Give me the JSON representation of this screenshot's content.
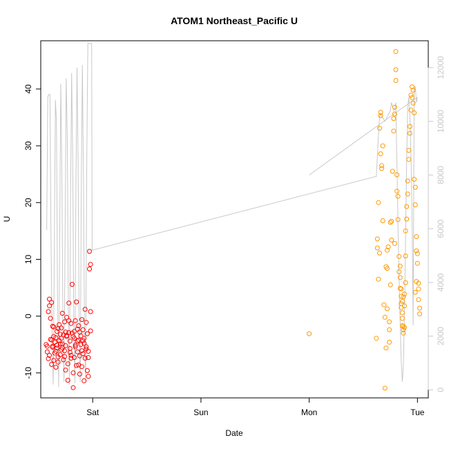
{
  "chart_data": {
    "type": "scatter",
    "title": "ATOM1 Northeast_Pacific U",
    "xlabel": "Date",
    "ylabel": "U",
    "x_ticks": [
      {
        "value": 2.0,
        "label": "Sat"
      },
      {
        "value": 3.0,
        "label": "Sun"
      },
      {
        "value": 4.0,
        "label": "Mon"
      },
      {
        "value": 5.0,
        "label": "Tue"
      }
    ],
    "xlim": [
      1.52,
      5.1
    ],
    "ylim": [
      -14.4,
      48.5
    ],
    "y_ticks": [
      -10,
      0,
      10,
      20,
      30,
      40
    ],
    "y2lim": [
      -300,
      13000
    ],
    "y2_ticks": [
      0,
      2000,
      4000,
      6000,
      8000,
      10000,
      12000
    ],
    "colors": {
      "group1": "#ff0000",
      "group2": "#ff9900",
      "line": "#c8c8c8"
    },
    "series": [
      {
        "color": "#ff0000",
        "points": [
          [
            1.57,
            -5
          ],
          [
            1.58,
            -6.3
          ],
          [
            1.59,
            -7.5
          ],
          [
            1.6,
            1.8
          ],
          [
            1.6,
            3
          ],
          [
            1.61,
            -0.4
          ],
          [
            1.61,
            -4.1
          ],
          [
            1.62,
            -8.5
          ],
          [
            1.62,
            2.4
          ],
          [
            1.63,
            -1.8
          ],
          [
            1.63,
            -5.5
          ],
          [
            1.64,
            -7.8
          ],
          [
            1.64,
            -1.9
          ],
          [
            1.65,
            -4.6
          ],
          [
            1.65,
            -6.5
          ],
          [
            1.66,
            -3.8
          ],
          [
            1.66,
            -9
          ],
          [
            1.67,
            -5.1
          ],
          [
            1.67,
            -2.7
          ],
          [
            1.68,
            -7.2
          ],
          [
            1.68,
            -8.1
          ],
          [
            1.69,
            -4.3
          ],
          [
            1.69,
            -1.5
          ],
          [
            1.7,
            -6.8
          ],
          [
            1.7,
            -3.2
          ],
          [
            1.71,
            -5.9
          ],
          [
            1.71,
            -2.1
          ],
          [
            1.72,
            0.5
          ],
          [
            1.72,
            -4.9
          ],
          [
            1.73,
            -7.7
          ],
          [
            1.73,
            -3.3
          ],
          [
            1.74,
            -6.1
          ],
          [
            1.74,
            -1
          ],
          [
            1.75,
            -9.5
          ],
          [
            1.75,
            -5.2
          ],
          [
            1.76,
            -0.2
          ],
          [
            1.76,
            -3.6
          ],
          [
            1.77,
            -11.3
          ],
          [
            1.77,
            -8.4
          ],
          [
            1.78,
            -2.9
          ],
          [
            1.78,
            2.3
          ],
          [
            1.79,
            -5.7
          ],
          [
            1.79,
            -4.4
          ],
          [
            1.8,
            -6.9
          ],
          [
            1.8,
            -1.3
          ],
          [
            1.81,
            5.6
          ],
          [
            1.81,
            -3
          ],
          [
            1.82,
            -10
          ],
          [
            1.82,
            -12.6
          ],
          [
            1.83,
            -7.3
          ],
          [
            1.83,
            -3.9
          ],
          [
            1.84,
            -0.8
          ],
          [
            1.84,
            -5.4
          ],
          [
            1.85,
            -8.7
          ],
          [
            1.85,
            2.5
          ],
          [
            1.86,
            -2.3
          ],
          [
            1.86,
            -6.3
          ],
          [
            1.87,
            -4.2
          ],
          [
            1.87,
            -1.7
          ],
          [
            1.88,
            -7
          ],
          [
            1.88,
            -10.2
          ],
          [
            1.89,
            -5
          ],
          [
            1.89,
            -3.5
          ],
          [
            1.9,
            -0.6
          ],
          [
            1.9,
            -8.9
          ],
          [
            1.91,
            -6.6
          ],
          [
            1.91,
            -2.4
          ],
          [
            1.92,
            -11.4
          ],
          [
            1.92,
            -4.8
          ],
          [
            1.93,
            -7.4
          ],
          [
            1.93,
            1.2
          ],
          [
            1.94,
            -1.1
          ],
          [
            1.94,
            -5.8
          ],
          [
            1.95,
            -9.6
          ],
          [
            1.95,
            -3.1
          ],
          [
            1.96,
            -6.2
          ],
          [
            1.96,
            -10.6
          ],
          [
            1.97,
            8.3
          ],
          [
            1.97,
            11.4
          ],
          [
            1.98,
            9.1
          ],
          [
            1.98,
            0.8
          ],
          [
            1.98,
            -2.6
          ],
          [
            1.58,
            -5.3
          ],
          [
            1.59,
            0.8
          ],
          [
            1.62,
            -4.2
          ],
          [
            1.64,
            -3.6
          ],
          [
            1.66,
            -6.2
          ],
          [
            1.68,
            -2.2
          ],
          [
            1.7,
            -4.9
          ],
          [
            1.72,
            -5.6
          ],
          [
            1.74,
            -7.1
          ],
          [
            1.76,
            -3.4
          ],
          [
            1.78,
            -0.8
          ],
          [
            1.8,
            -7.4
          ],
          [
            1.82,
            -3.6
          ],
          [
            1.84,
            -5.1
          ],
          [
            1.86,
            -4.4
          ],
          [
            1.88,
            -2.8
          ],
          [
            1.9,
            -6.1
          ],
          [
            1.92,
            -3.9
          ],
          [
            1.94,
            -5.4
          ],
          [
            1.96,
            -7.3
          ],
          [
            1.6,
            -6.9
          ],
          [
            1.63,
            -5.3
          ],
          [
            1.67,
            -5.6
          ],
          [
            1.71,
            -3.9
          ],
          [
            1.75,
            -2.8
          ],
          [
            1.79,
            -6.4
          ],
          [
            1.83,
            -2.7
          ],
          [
            1.87,
            -8.6
          ],
          [
            1.91,
            -4.3
          ]
        ]
      },
      {
        "color": "#ff9900",
        "points": [
          [
            4.0,
            -3.1
          ],
          [
            4.62,
            -3.9
          ],
          [
            4.63,
            13.6
          ],
          [
            4.63,
            12
          ],
          [
            4.64,
            6.5
          ],
          [
            4.64,
            20
          ],
          [
            4.65,
            11.1
          ],
          [
            4.65,
            33.1
          ],
          [
            4.66,
            35.9
          ],
          [
            4.66,
            28.6
          ],
          [
            4.67,
            26.5
          ],
          [
            4.67,
            26
          ],
          [
            4.68,
            30
          ],
          [
            4.68,
            16.8
          ],
          [
            4.69,
            2
          ],
          [
            4.7,
            -12.7
          ],
          [
            4.7,
            -0.2
          ],
          [
            4.71,
            -5.6
          ],
          [
            4.71,
            8.7
          ],
          [
            4.72,
            11.6
          ],
          [
            4.72,
            8.4
          ],
          [
            4.73,
            12.2
          ],
          [
            4.74,
            -4.6
          ],
          [
            4.74,
            -2.4
          ],
          [
            4.75,
            5.5
          ],
          [
            4.76,
            13.4
          ],
          [
            4.76,
            16.7
          ],
          [
            4.77,
            25.5
          ],
          [
            4.78,
            32.6
          ],
          [
            4.78,
            34.8
          ],
          [
            4.79,
            35.6
          ],
          [
            4.79,
            36.8
          ],
          [
            4.8,
            43.4
          ],
          [
            4.8,
            46.6
          ],
          [
            4.8,
            41.5
          ],
          [
            4.81,
            24.9
          ],
          [
            4.81,
            22
          ],
          [
            4.82,
            21.1
          ],
          [
            4.82,
            17
          ],
          [
            4.83,
            10.5
          ],
          [
            4.83,
            7.8
          ],
          [
            4.84,
            6.8
          ],
          [
            4.84,
            4.9
          ],
          [
            4.85,
            3.5
          ],
          [
            4.85,
            2.2
          ],
          [
            4.85,
            1.5
          ],
          [
            4.86,
            0.6
          ],
          [
            4.86,
            -0.4
          ],
          [
            4.86,
            -1.7
          ],
          [
            4.87,
            -2.4
          ],
          [
            4.87,
            -3
          ],
          [
            4.87,
            -1.8
          ],
          [
            4.88,
            -2
          ],
          [
            4.88,
            1.8
          ],
          [
            4.88,
            3.9
          ],
          [
            4.89,
            5.9
          ],
          [
            4.89,
            10.6
          ],
          [
            4.89,
            15
          ],
          [
            4.9,
            17.1
          ],
          [
            4.9,
            19.3
          ],
          [
            4.91,
            21.5
          ],
          [
            4.91,
            23.8
          ],
          [
            4.92,
            27.6
          ],
          [
            4.92,
            29.2
          ],
          [
            4.93,
            32.2
          ],
          [
            4.93,
            33.4
          ],
          [
            4.94,
            36.3
          ],
          [
            4.94,
            38.9
          ],
          [
            4.95,
            40.4
          ],
          [
            4.95,
            38.5
          ],
          [
            4.96,
            39.8
          ],
          [
            4.96,
            37.5
          ],
          [
            4.97,
            35.8
          ],
          [
            4.97,
            24.1
          ],
          [
            4.98,
            22.7
          ],
          [
            4.98,
            19.6
          ],
          [
            4.99,
            14
          ],
          [
            4.99,
            11.5
          ],
          [
            5.0,
            9.3
          ],
          [
            5.0,
            11
          ],
          [
            5.01,
            5.8
          ],
          [
            5.01,
            4.8
          ],
          [
            5.01,
            2.9
          ],
          [
            5.02,
            1.4
          ],
          [
            5.02,
            0.4
          ],
          [
            4.99,
            6.1
          ],
          [
            4.98,
            4.2
          ],
          [
            4.87,
            3.4
          ],
          [
            4.86,
            2.6
          ],
          [
            4.85,
            4.8
          ],
          [
            4.84,
            8.8
          ],
          [
            4.79,
            12.8
          ],
          [
            4.75,
            16.5
          ],
          [
            4.74,
            -1
          ],
          [
            4.72,
            1.3
          ],
          [
            4.66,
            35.3
          ]
        ]
      }
    ],
    "right_axis_line": [
      [
        1.575,
        5950
      ],
      [
        1.585,
        10900
      ],
      [
        1.595,
        11000
      ],
      [
        1.605,
        11000
      ],
      [
        1.615,
        5500
      ],
      [
        1.625,
        2000
      ],
      [
        1.635,
        200
      ],
      [
        1.645,
        5000
      ],
      [
        1.655,
        10800
      ],
      [
        1.665,
        10000
      ],
      [
        1.675,
        3500
      ],
      [
        1.685,
        100
      ],
      [
        1.695,
        5500
      ],
      [
        1.705,
        11400
      ],
      [
        1.715,
        8000
      ],
      [
        1.725,
        2200
      ],
      [
        1.735,
        300
      ],
      [
        1.745,
        6000
      ],
      [
        1.755,
        11600
      ],
      [
        1.765,
        9500
      ],
      [
        1.775,
        2800
      ],
      [
        1.785,
        200
      ],
      [
        1.795,
        7000
      ],
      [
        1.805,
        11800
      ],
      [
        1.815,
        8800
      ],
      [
        1.825,
        2500
      ],
      [
        1.835,
        250
      ],
      [
        1.845,
        7500
      ],
      [
        1.855,
        12000
      ],
      [
        1.865,
        8400
      ],
      [
        1.875,
        2000
      ],
      [
        1.885,
        300
      ],
      [
        1.895,
        8000
      ],
      [
        1.905,
        12100
      ],
      [
        1.915,
        7600
      ],
      [
        1.925,
        1800
      ],
      [
        1.935,
        350
      ],
      [
        1.945,
        8500
      ],
      [
        1.955,
        12900
      ],
      [
        1.96,
        12900
      ],
      [
        1.975,
        12900
      ],
      [
        1.99,
        12900
      ],
      [
        1.995,
        5200
      ],
      [
        4.62,
        7950
      ],
      [
        4.64,
        9500
      ],
      [
        4.65,
        10200
      ],
      [
        4.66,
        10250
      ],
      [
        4.7,
        10000
      ],
      [
        4.75,
        10400
      ],
      [
        4.76,
        10700
      ],
      [
        4.78,
        10400
      ],
      [
        4.79,
        10450
      ],
      [
        4.8,
        10700
      ],
      [
        4.81,
        8500
      ],
      [
        4.82,
        6200
      ],
      [
        4.83,
        4200
      ],
      [
        4.84,
        2500
      ],
      [
        4.85,
        1100
      ],
      [
        4.86,
        300
      ],
      [
        4.87,
        900
      ],
      [
        4.88,
        2800
      ],
      [
        4.89,
        5600
      ],
      [
        4.9,
        8500
      ],
      [
        4.91,
        10500
      ],
      [
        4.92,
        10900
      ],
      [
        4.93,
        10200
      ],
      [
        4.94,
        8800
      ],
      [
        4.95,
        6500
      ],
      [
        4.96,
        2400
      ],
      [
        4.97,
        11200
      ],
      [
        4.98,
        11300
      ],
      [
        4.99,
        10700
      ],
      [
        5.0,
        10900
      ]
    ],
    "right_axis_line_2": [
      [
        4.0,
        8000
      ],
      [
        5.0,
        10900
      ]
    ],
    "grid": false,
    "legend": "none"
  }
}
